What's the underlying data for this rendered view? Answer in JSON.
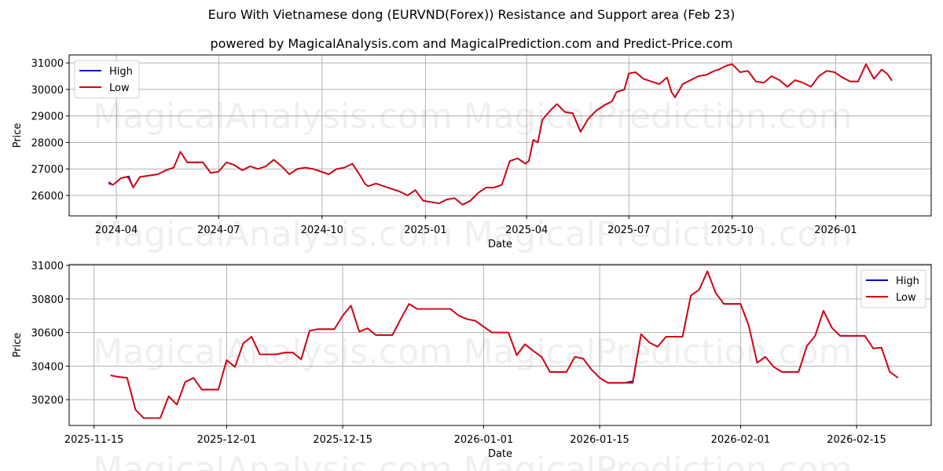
{
  "header": {
    "title": "Euro With Vietnamese dong (EURVND(Forex)) Resistance and Support area (Feb 23)",
    "subtitle": "powered by MagicalAnalysis.com and MagicalPrediction.com and Predict-Price.com"
  },
  "watermarks": [
    "MagicalAnalysis.com",
    "MagicalPrediction.com"
  ],
  "colors": {
    "high": "#0000cc",
    "low": "#dd0000",
    "grid": "#b0b0b0",
    "axes": "#000000"
  },
  "chart_data": [
    {
      "type": "line",
      "title": "Euro With Vietnamese dong (EURVND(Forex)) Resistance and Support area (Feb 23)",
      "xlabel": "Date",
      "ylabel": "Price",
      "ylim": [
        25230,
        31300
      ],
      "xlim": [
        "2024-02-19",
        "2026-03-27"
      ],
      "grid": true,
      "legend_position": "upper left",
      "legend": [
        "High",
        "Low"
      ],
      "yticks": [
        26000,
        27000,
        28000,
        29000,
        30000,
        31000
      ],
      "xticks": [
        "2024-04",
        "2024-07",
        "2024-10",
        "2025-01",
        "2025-04",
        "2025-07",
        "2025-10",
        "2026-01"
      ],
      "xtick_dates": [
        "2024-04-01",
        "2024-07-01",
        "2024-10-01",
        "2025-01-01",
        "2025-04-01",
        "2025-07-01",
        "2025-10-01",
        "2026-01-01"
      ],
      "x": [
        "2024-03-25",
        "2024-03-29",
        "2024-04-05",
        "2024-04-10",
        "2024-04-12",
        "2024-04-16",
        "2024-04-22",
        "2024-04-30",
        "2024-05-08",
        "2024-05-15",
        "2024-05-22",
        "2024-05-28",
        "2024-06-03",
        "2024-06-10",
        "2024-06-17",
        "2024-06-24",
        "2024-07-01",
        "2024-07-08",
        "2024-07-15",
        "2024-07-22",
        "2024-07-29",
        "2024-08-05",
        "2024-08-12",
        "2024-08-19",
        "2024-08-26",
        "2024-09-02",
        "2024-09-09",
        "2024-09-16",
        "2024-09-23",
        "2024-09-30",
        "2024-10-07",
        "2024-10-14",
        "2024-10-21",
        "2024-10-28",
        "2024-11-04",
        "2024-11-08",
        "2024-11-11",
        "2024-11-18",
        "2024-11-25",
        "2024-12-02",
        "2024-12-09",
        "2024-12-16",
        "2024-12-23",
        "2024-12-30",
        "2025-01-06",
        "2025-01-13",
        "2025-01-20",
        "2025-01-27",
        "2025-02-03",
        "2025-02-10",
        "2025-02-17",
        "2025-02-24",
        "2025-03-03",
        "2025-03-10",
        "2025-03-17",
        "2025-03-24",
        "2025-03-31",
        "2025-04-03",
        "2025-04-07",
        "2025-04-11",
        "2025-04-15",
        "2025-04-22",
        "2025-04-28",
        "2025-05-05",
        "2025-05-12",
        "2025-05-16",
        "2025-05-19",
        "2025-05-26",
        "2025-06-02",
        "2025-06-09",
        "2025-06-16",
        "2025-06-20",
        "2025-06-27",
        "2025-07-01",
        "2025-07-07",
        "2025-07-14",
        "2025-07-21",
        "2025-07-28",
        "2025-08-04",
        "2025-08-08",
        "2025-08-11",
        "2025-08-18",
        "2025-08-25",
        "2025-09-01",
        "2025-09-08",
        "2025-09-15",
        "2025-09-19",
        "2025-09-26",
        "2025-10-01",
        "2025-10-08",
        "2025-10-15",
        "2025-10-22",
        "2025-10-29",
        "2025-11-05",
        "2025-11-12",
        "2025-11-19",
        "2025-11-26",
        "2025-12-03",
        "2025-12-10",
        "2025-12-17",
        "2025-12-24",
        "2025-12-31",
        "2026-01-07",
        "2026-01-14",
        "2026-01-21",
        "2026-01-28",
        "2026-02-04",
        "2026-02-11",
        "2026-02-16",
        "2026-02-20"
      ],
      "series": [
        {
          "name": "High",
          "values": [
            26500,
            26400,
            26650,
            26700,
            26720,
            26300,
            26700,
            26750,
            26800,
            26950,
            27050,
            27650,
            27250,
            27250,
            27250,
            26850,
            26900,
            27250,
            27150,
            26950,
            27100,
            27000,
            27100,
            27350,
            27100,
            26800,
            27000,
            27050,
            27000,
            26900,
            26800,
            27000,
            27050,
            27200,
            26750,
            26450,
            26350,
            26450,
            26350,
            26250,
            26150,
            26000,
            26200,
            25800,
            25750,
            25700,
            25850,
            25900,
            25650,
            25800,
            26100,
            26300,
            26300,
            26400,
            27300,
            27400,
            27200,
            27300,
            28100,
            28000,
            28850,
            29200,
            29450,
            29150,
            29100,
            28700,
            28400,
            28900,
            29200,
            29400,
            29550,
            29900,
            30000,
            30600,
            30650,
            30400,
            30300,
            30200,
            30450,
            29900,
            29700,
            30200,
            30350,
            30500,
            30550,
            30700,
            30750,
            30900,
            30950,
            30650,
            30700,
            30300,
            30250,
            30500,
            30350,
            30100,
            30350,
            30250,
            30100,
            30500,
            30700,
            30650,
            30450,
            30300,
            30300,
            30950,
            30400,
            30750,
            30580,
            30330
          ]
        },
        {
          "name": "Low",
          "values": [
            26450,
            26400,
            26650,
            26700,
            26650,
            26300,
            26700,
            26750,
            26800,
            26950,
            27050,
            27650,
            27250,
            27250,
            27250,
            26850,
            26900,
            27250,
            27150,
            26950,
            27100,
            27000,
            27100,
            27350,
            27100,
            26800,
            27000,
            27050,
            27000,
            26900,
            26800,
            27000,
            27050,
            27200,
            26750,
            26450,
            26350,
            26450,
            26350,
            26250,
            26150,
            26000,
            26200,
            25800,
            25750,
            25700,
            25850,
            25900,
            25650,
            25800,
            26100,
            26300,
            26300,
            26400,
            27300,
            27400,
            27200,
            27300,
            28100,
            28000,
            28850,
            29200,
            29450,
            29150,
            29100,
            28700,
            28400,
            28900,
            29200,
            29400,
            29550,
            29900,
            30000,
            30600,
            30650,
            30400,
            30300,
            30200,
            30450,
            29900,
            29700,
            30200,
            30350,
            30500,
            30550,
            30700,
            30750,
            30900,
            30950,
            30650,
            30700,
            30300,
            30250,
            30500,
            30350,
            30100,
            30350,
            30250,
            30100,
            30500,
            30700,
            30650,
            30450,
            30300,
            30300,
            30950,
            30400,
            30750,
            30580,
            30330
          ]
        }
      ]
    },
    {
      "type": "line",
      "title": "",
      "xlabel": "Date",
      "ylabel": "Price",
      "ylim": [
        30046,
        31005
      ],
      "xlim": [
        "2025-11-12",
        "2026-02-24"
      ],
      "grid": true,
      "legend_position": "upper right",
      "legend": [
        "High",
        "Low"
      ],
      "yticks": [
        30200,
        30400,
        30600,
        30800,
        31000
      ],
      "xticks": [
        "2025-11-15",
        "2025-12-01",
        "2025-12-15",
        "2026-01-01",
        "2026-01-15",
        "2026-02-01",
        "2026-02-15"
      ],
      "x": [
        "2025-11-17",
        "2025-11-18",
        "2025-11-19",
        "2025-11-20",
        "2025-11-21",
        "2025-11-22",
        "2025-11-23",
        "2025-11-24",
        "2025-11-25",
        "2025-11-26",
        "2025-11-27",
        "2025-11-28",
        "2025-11-29",
        "2025-11-30",
        "2025-12-01",
        "2025-12-02",
        "2025-12-03",
        "2025-12-04",
        "2025-12-05",
        "2025-12-06",
        "2025-12-07",
        "2025-12-08",
        "2025-12-09",
        "2025-12-10",
        "2025-12-11",
        "2025-12-12",
        "2025-12-13",
        "2025-12-14",
        "2025-12-15",
        "2025-12-16",
        "2025-12-17",
        "2025-12-18",
        "2025-12-19",
        "2025-12-20",
        "2025-12-21",
        "2025-12-22",
        "2025-12-23",
        "2025-12-24",
        "2025-12-25",
        "2025-12-26",
        "2025-12-27",
        "2025-12-28",
        "2025-12-29",
        "2025-12-30",
        "2025-12-31",
        "2026-01-01",
        "2026-01-02",
        "2026-01-03",
        "2026-01-04",
        "2026-01-05",
        "2026-01-06",
        "2026-01-07",
        "2026-01-08",
        "2026-01-09",
        "2026-01-10",
        "2026-01-11",
        "2026-01-12",
        "2026-01-13",
        "2026-01-14",
        "2026-01-15",
        "2026-01-16",
        "2026-01-17",
        "2026-01-18",
        "2026-01-19",
        "2026-01-20",
        "2026-01-21",
        "2026-01-22",
        "2026-01-23",
        "2026-01-24",
        "2026-01-25",
        "2026-01-26",
        "2026-01-27",
        "2026-01-28",
        "2026-01-29",
        "2026-01-30",
        "2026-01-31",
        "2026-02-01",
        "2026-02-02",
        "2026-02-03",
        "2026-02-04",
        "2026-02-05",
        "2026-02-06",
        "2026-02-07",
        "2026-02-08",
        "2026-02-09",
        "2026-02-10",
        "2026-02-11",
        "2026-02-12",
        "2026-02-13",
        "2026-02-14",
        "2026-02-15",
        "2026-02-16",
        "2026-02-17",
        "2026-02-18",
        "2026-02-19",
        "2026-02-20"
      ],
      "series": [
        {
          "name": "High",
          "values": [
            30345,
            30335,
            30330,
            30140,
            30090,
            30090,
            30090,
            30220,
            30170,
            30305,
            30330,
            30260,
            30260,
            30260,
            30435,
            30395,
            30535,
            30575,
            30470,
            30470,
            30470,
            30480,
            30480,
            30440,
            30610,
            30620,
            30620,
            30620,
            30700,
            30760,
            30605,
            30625,
            30585,
            30585,
            30585,
            30680,
            30770,
            30740,
            30740,
            30740,
            30740,
            30740,
            30700,
            30680,
            30670,
            30635,
            30600,
            30600,
            30600,
            30465,
            30530,
            30490,
            30455,
            30365,
            30365,
            30365,
            30455,
            30445,
            30380,
            30330,
            30300,
            30300,
            30300,
            30310,
            30590,
            30540,
            30515,
            30575,
            30575,
            30575,
            30820,
            30855,
            30965,
            30835,
            30770,
            30770,
            30770,
            30640,
            30420,
            30455,
            30395,
            30365,
            30365,
            30365,
            30520,
            30580,
            30730,
            30630,
            30580,
            30580,
            30580,
            30580,
            30505,
            30510,
            30365,
            30330
          ]
        },
        {
          "name": "Low",
          "values": [
            30345,
            30335,
            30330,
            30140,
            30090,
            30090,
            30090,
            30220,
            30170,
            30305,
            30330,
            30260,
            30260,
            30260,
            30435,
            30395,
            30535,
            30575,
            30470,
            30470,
            30470,
            30480,
            30480,
            30440,
            30610,
            30620,
            30620,
            30620,
            30700,
            30760,
            30605,
            30625,
            30585,
            30585,
            30585,
            30680,
            30770,
            30740,
            30740,
            30740,
            30740,
            30740,
            30700,
            30680,
            30670,
            30635,
            30600,
            30600,
            30600,
            30465,
            30530,
            30490,
            30455,
            30365,
            30365,
            30365,
            30455,
            30445,
            30380,
            30330,
            30300,
            30300,
            30300,
            30300,
            30590,
            30540,
            30515,
            30575,
            30575,
            30575,
            30820,
            30855,
            30965,
            30835,
            30770,
            30770,
            30770,
            30640,
            30420,
            30455,
            30395,
            30365,
            30365,
            30365,
            30520,
            30580,
            30730,
            30630,
            30580,
            30580,
            30580,
            30580,
            30505,
            30510,
            30365,
            30330
          ]
        }
      ]
    }
  ]
}
